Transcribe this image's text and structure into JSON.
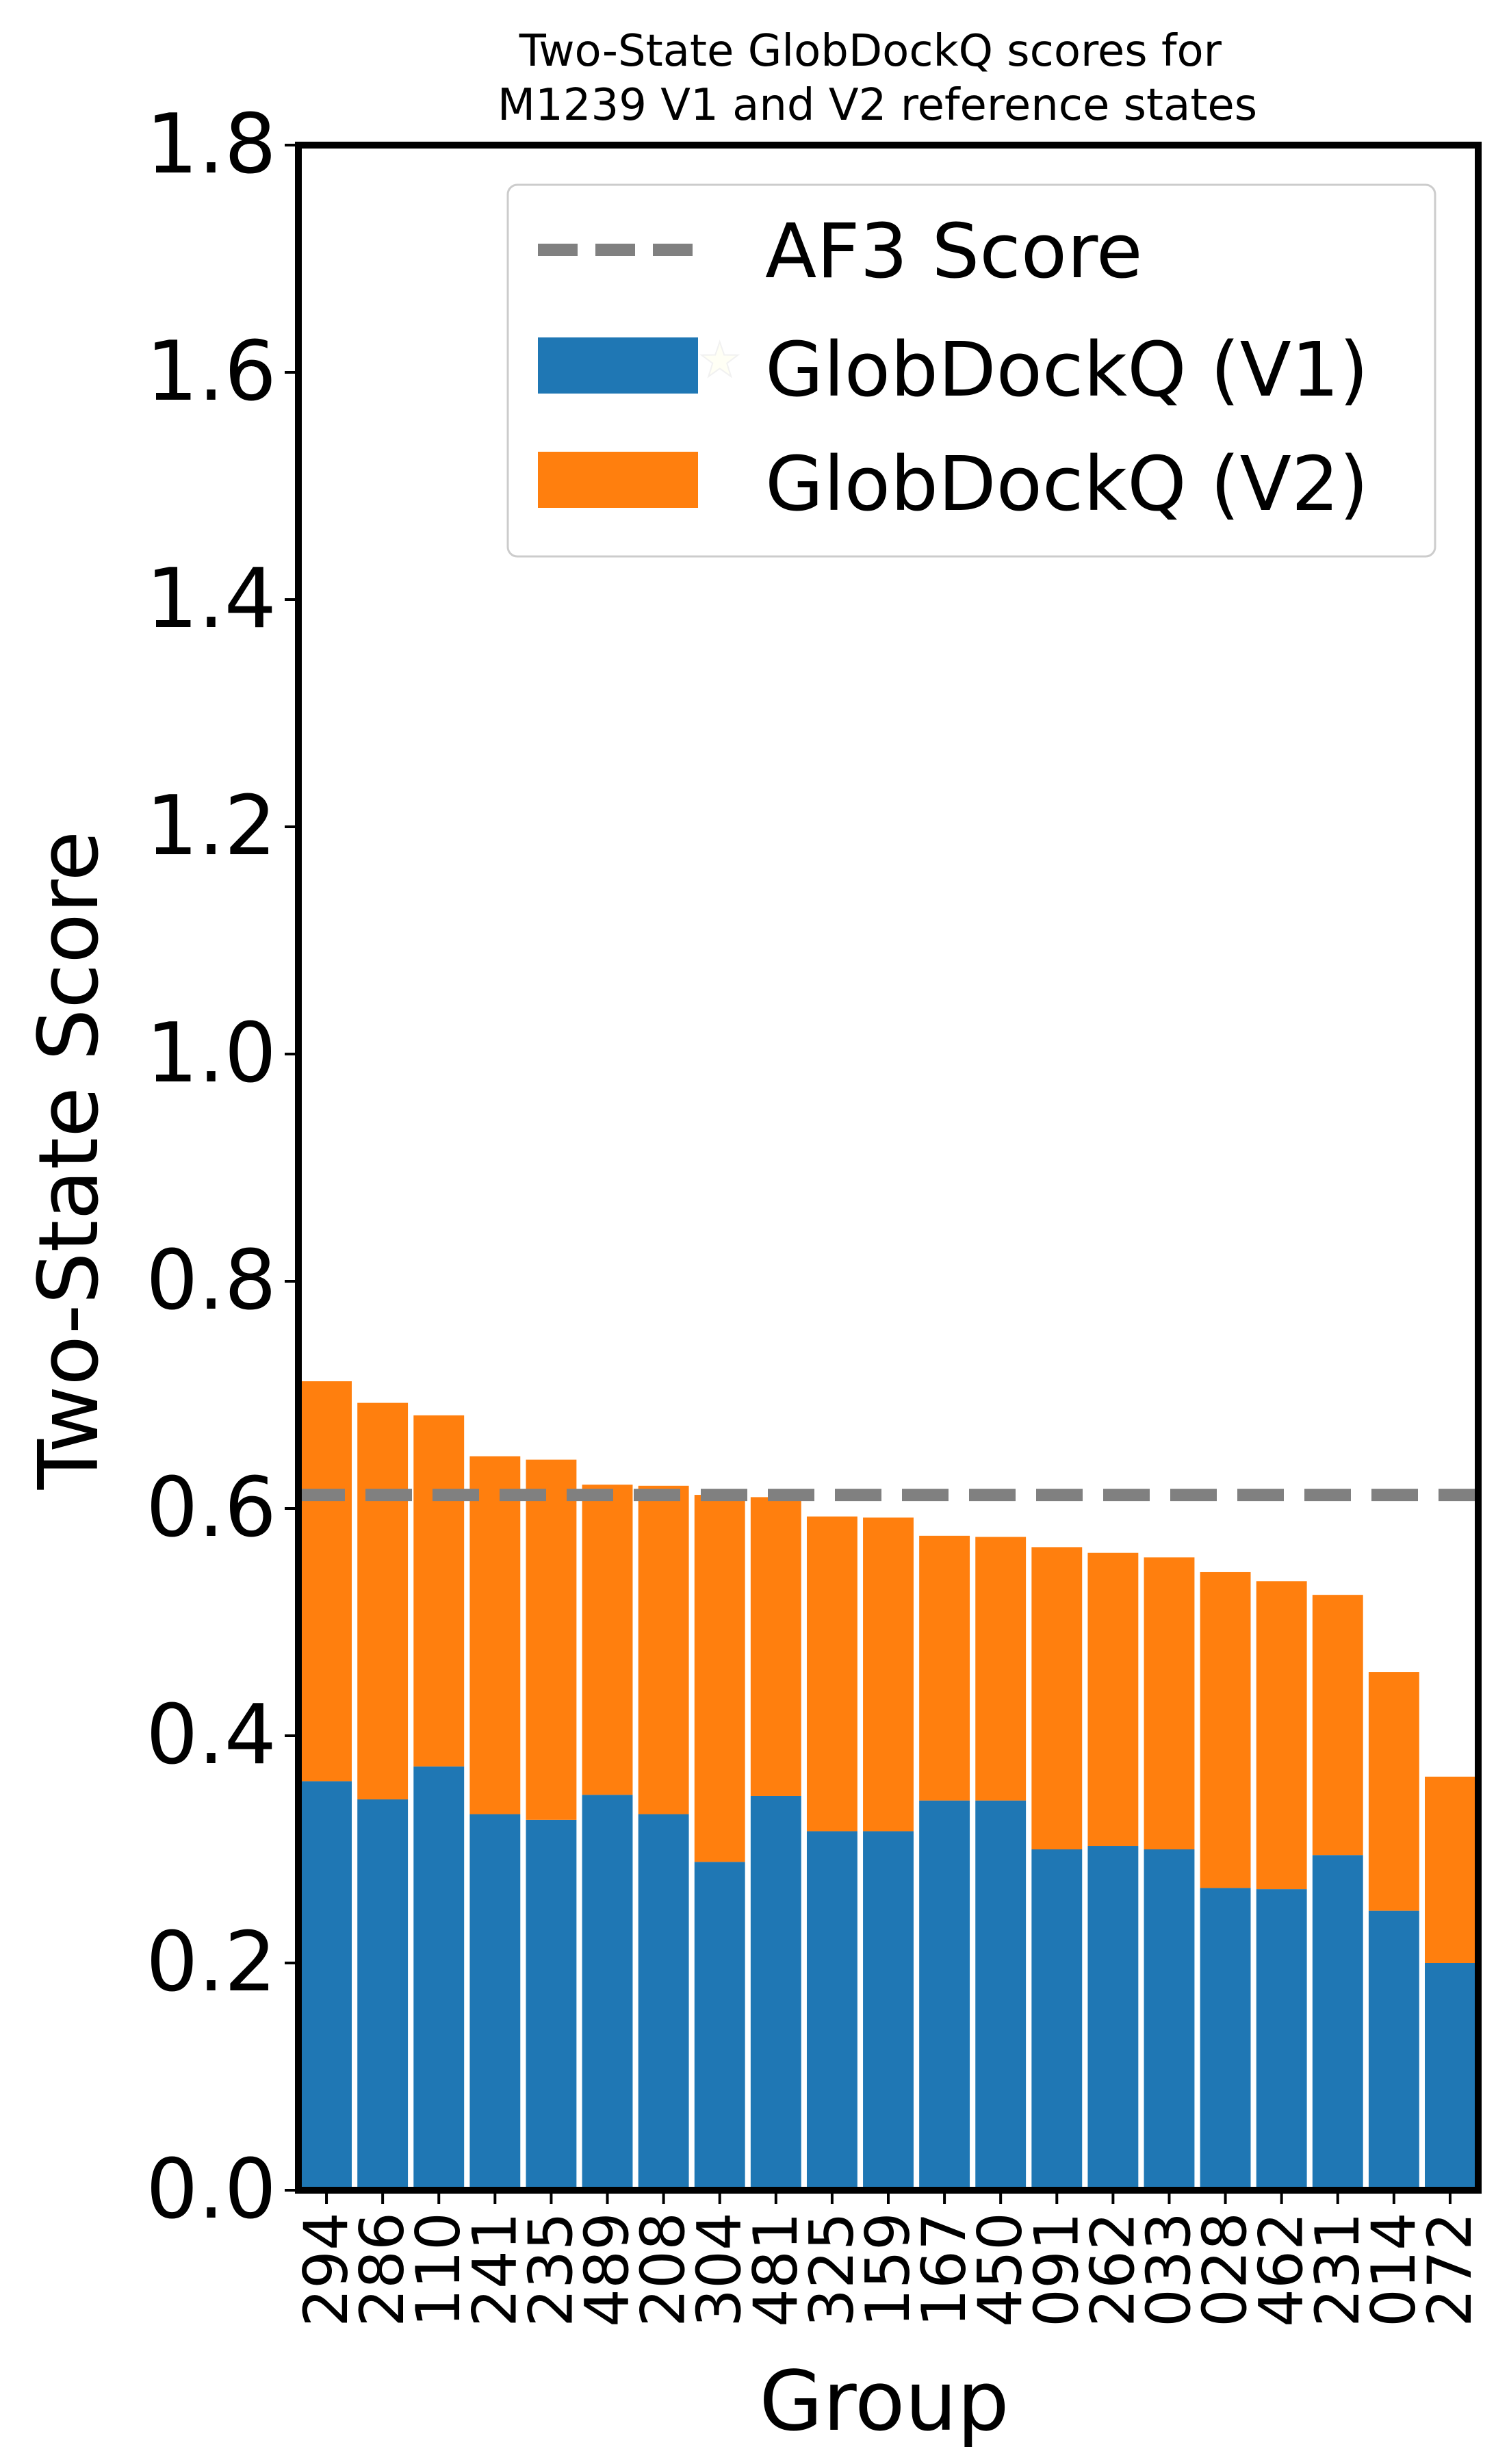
{
  "chart_data": {
    "type": "bar",
    "stacked": true,
    "title": "Two-State GlobDockQ scores for\nM1239 V1 and V2 reference states",
    "xlabel": "Group",
    "ylabel": "Two-State Score",
    "ylim": [
      0,
      1.8
    ],
    "yticks": [
      "0.0",
      "0.2",
      "0.4",
      "0.6",
      "0.8",
      "1.0",
      "1.2",
      "1.4",
      "1.6",
      "1.8"
    ],
    "grid": false,
    "legend_position": "top-right",
    "categories": [
      "294",
      "286",
      "110",
      "241",
      "235",
      "489",
      "208",
      "304",
      "481",
      "325",
      "159",
      "167",
      "450",
      "091",
      "262",
      "033",
      "028",
      "462",
      "231",
      "014",
      "272"
    ],
    "series": [
      {
        "name": "GlobDockQ (V1)",
        "color": "#1f77b4",
        "values": [
          0.36,
          0.344,
          0.373,
          0.331,
          0.326,
          0.348,
          0.331,
          0.289,
          0.347,
          0.316,
          0.316,
          0.343,
          0.343,
          0.3,
          0.303,
          0.3,
          0.266,
          0.265,
          0.295,
          0.246,
          0.2
        ]
      },
      {
        "name": "GlobDockQ (V2)",
        "color": "#ff7f0e",
        "values": [
          0.352,
          0.349,
          0.309,
          0.315,
          0.317,
          0.273,
          0.289,
          0.323,
          0.263,
          0.277,
          0.276,
          0.233,
          0.232,
          0.266,
          0.258,
          0.257,
          0.278,
          0.271,
          0.229,
          0.21,
          0.164
        ]
      }
    ],
    "reference_line": {
      "name": "AF3 Score",
      "value": 0.612,
      "color": "#808080",
      "style": "dashed"
    },
    "star_marker": {
      "category": "304",
      "value": 1.61,
      "color": "#ffffcc"
    }
  }
}
